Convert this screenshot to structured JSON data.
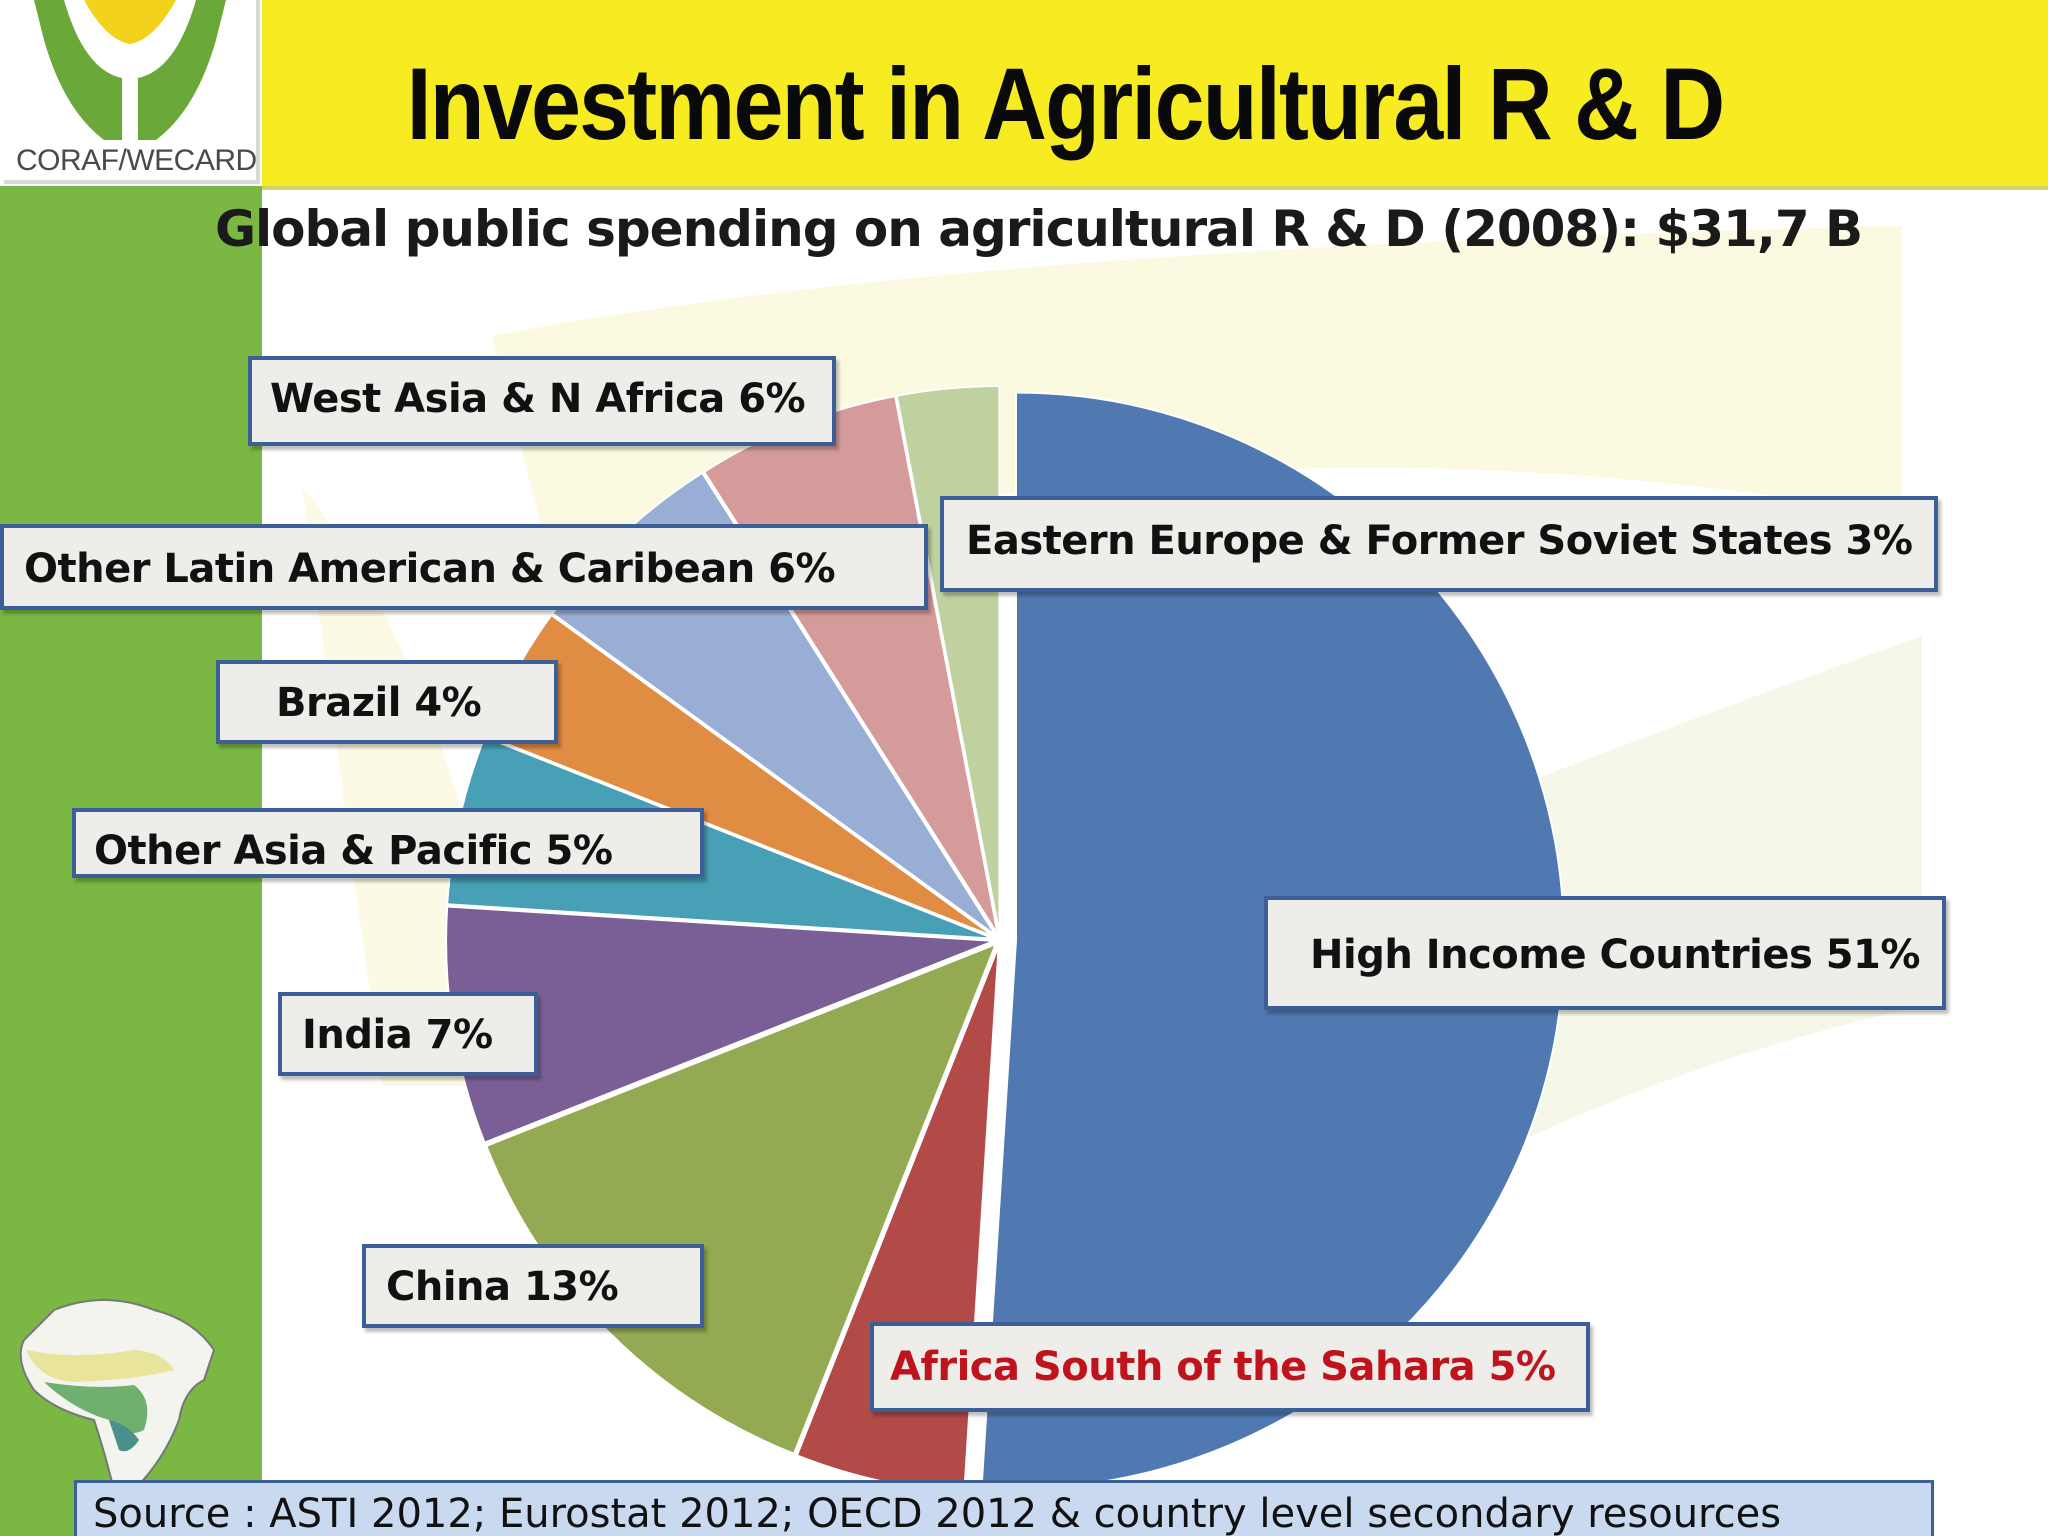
{
  "header": {
    "title": "Investment in Agricultural R & D",
    "logo_text": "CORAF/WECARD"
  },
  "subtitle": "Global public spending on agricultural R & D (2008): $31,7 B",
  "source": "Source :  ASTI  2012; Eurostat 2012; OECD 2012 & country level  secondary resources",
  "colors": {
    "title_band": "#f7ec22",
    "side_bar": "#7ab743",
    "label_border": "#3d5f97",
    "highlight_text": "#c0141c"
  },
  "chart_data": {
    "type": "pie",
    "title": "Global public spending on agricultural R & D (2008): $31,7 B",
    "slices": [
      {
        "label": "High Income Countries",
        "value": 51,
        "value_label": "51%",
        "color": "#4f79b0"
      },
      {
        "label": "Africa  South of the Sahara",
        "value": 5,
        "value_label": "5%",
        "color": "#b24a47"
      },
      {
        "label": "China",
        "value": 13,
        "value_label": "13%",
        "color": "#93aa53"
      },
      {
        "label": "India",
        "value": 7,
        "value_label": "7%",
        "color": "#7a5f96"
      },
      {
        "label": "Other Asia & Pacific",
        "value": 5,
        "value_label": "5%",
        "color": "#47a0b5"
      },
      {
        "label": "Brazil",
        "value": 4,
        "value_label": "4%",
        "color": "#e08c42"
      },
      {
        "label": "Other Latin American & Caribean",
        "value": 6,
        "value_label": "6%",
        "color": "#98aed4"
      },
      {
        "label": "West Asia & N Africa",
        "value": 6,
        "value_label": "6%",
        "color": "#d59a9a"
      },
      {
        "label": "Eastern Europe & Former Soviet States",
        "value": 3,
        "value_label": "3%",
        "color": "#bed19f"
      }
    ],
    "start_angle_deg": 0,
    "direction": "clockwise"
  },
  "labels": {
    "high_income": "High Income Countries  51%",
    "africa_ssa": "Africa  South of the Sahara  5%",
    "china": "China  13%",
    "india": "India  7%",
    "other_asia": "Other Asia & Pacific  5%",
    "brazil": "Brazil  4%",
    "other_latam": "Other Latin American & Caribean 6%",
    "west_asia": "West Asia & N Africa  6%",
    "eastern_europe": "Eastern Europe & Former Soviet States 3%"
  }
}
